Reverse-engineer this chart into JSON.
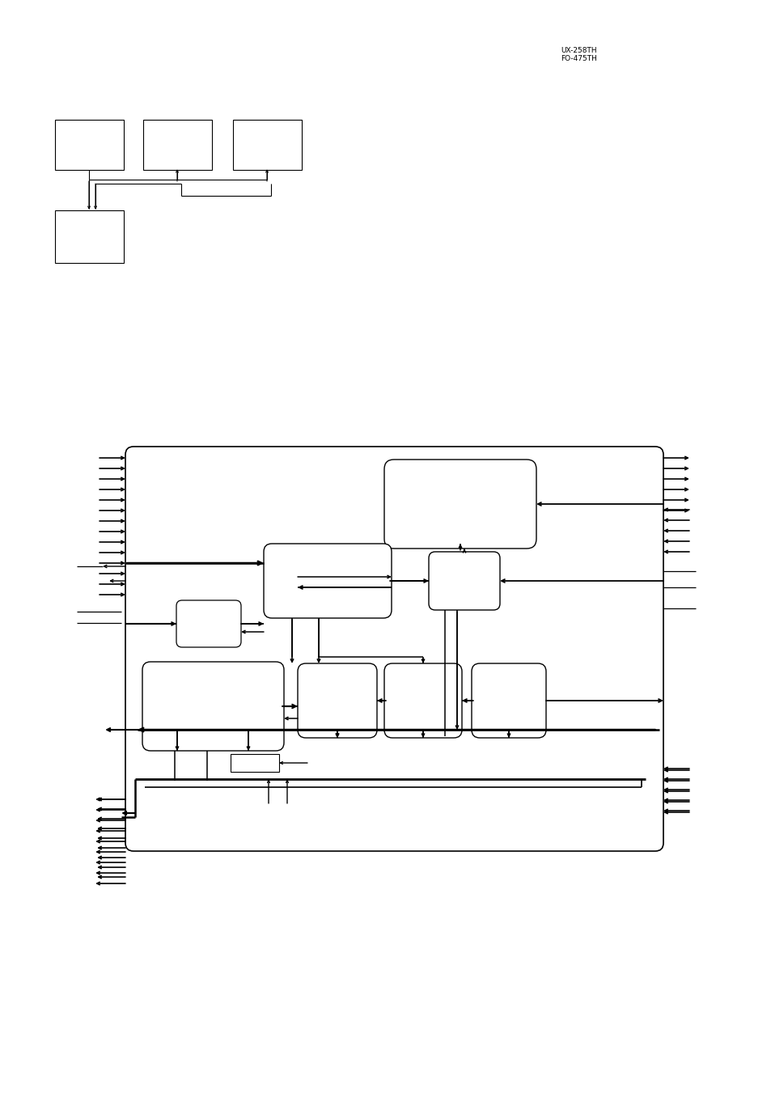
{
  "bg_color": "#ffffff",
  "line_color": "#000000",
  "header_text": "UX-258TH\nFO-475TH",
  "fig_width": 9.54,
  "fig_height": 13.51,
  "dpi": 100
}
